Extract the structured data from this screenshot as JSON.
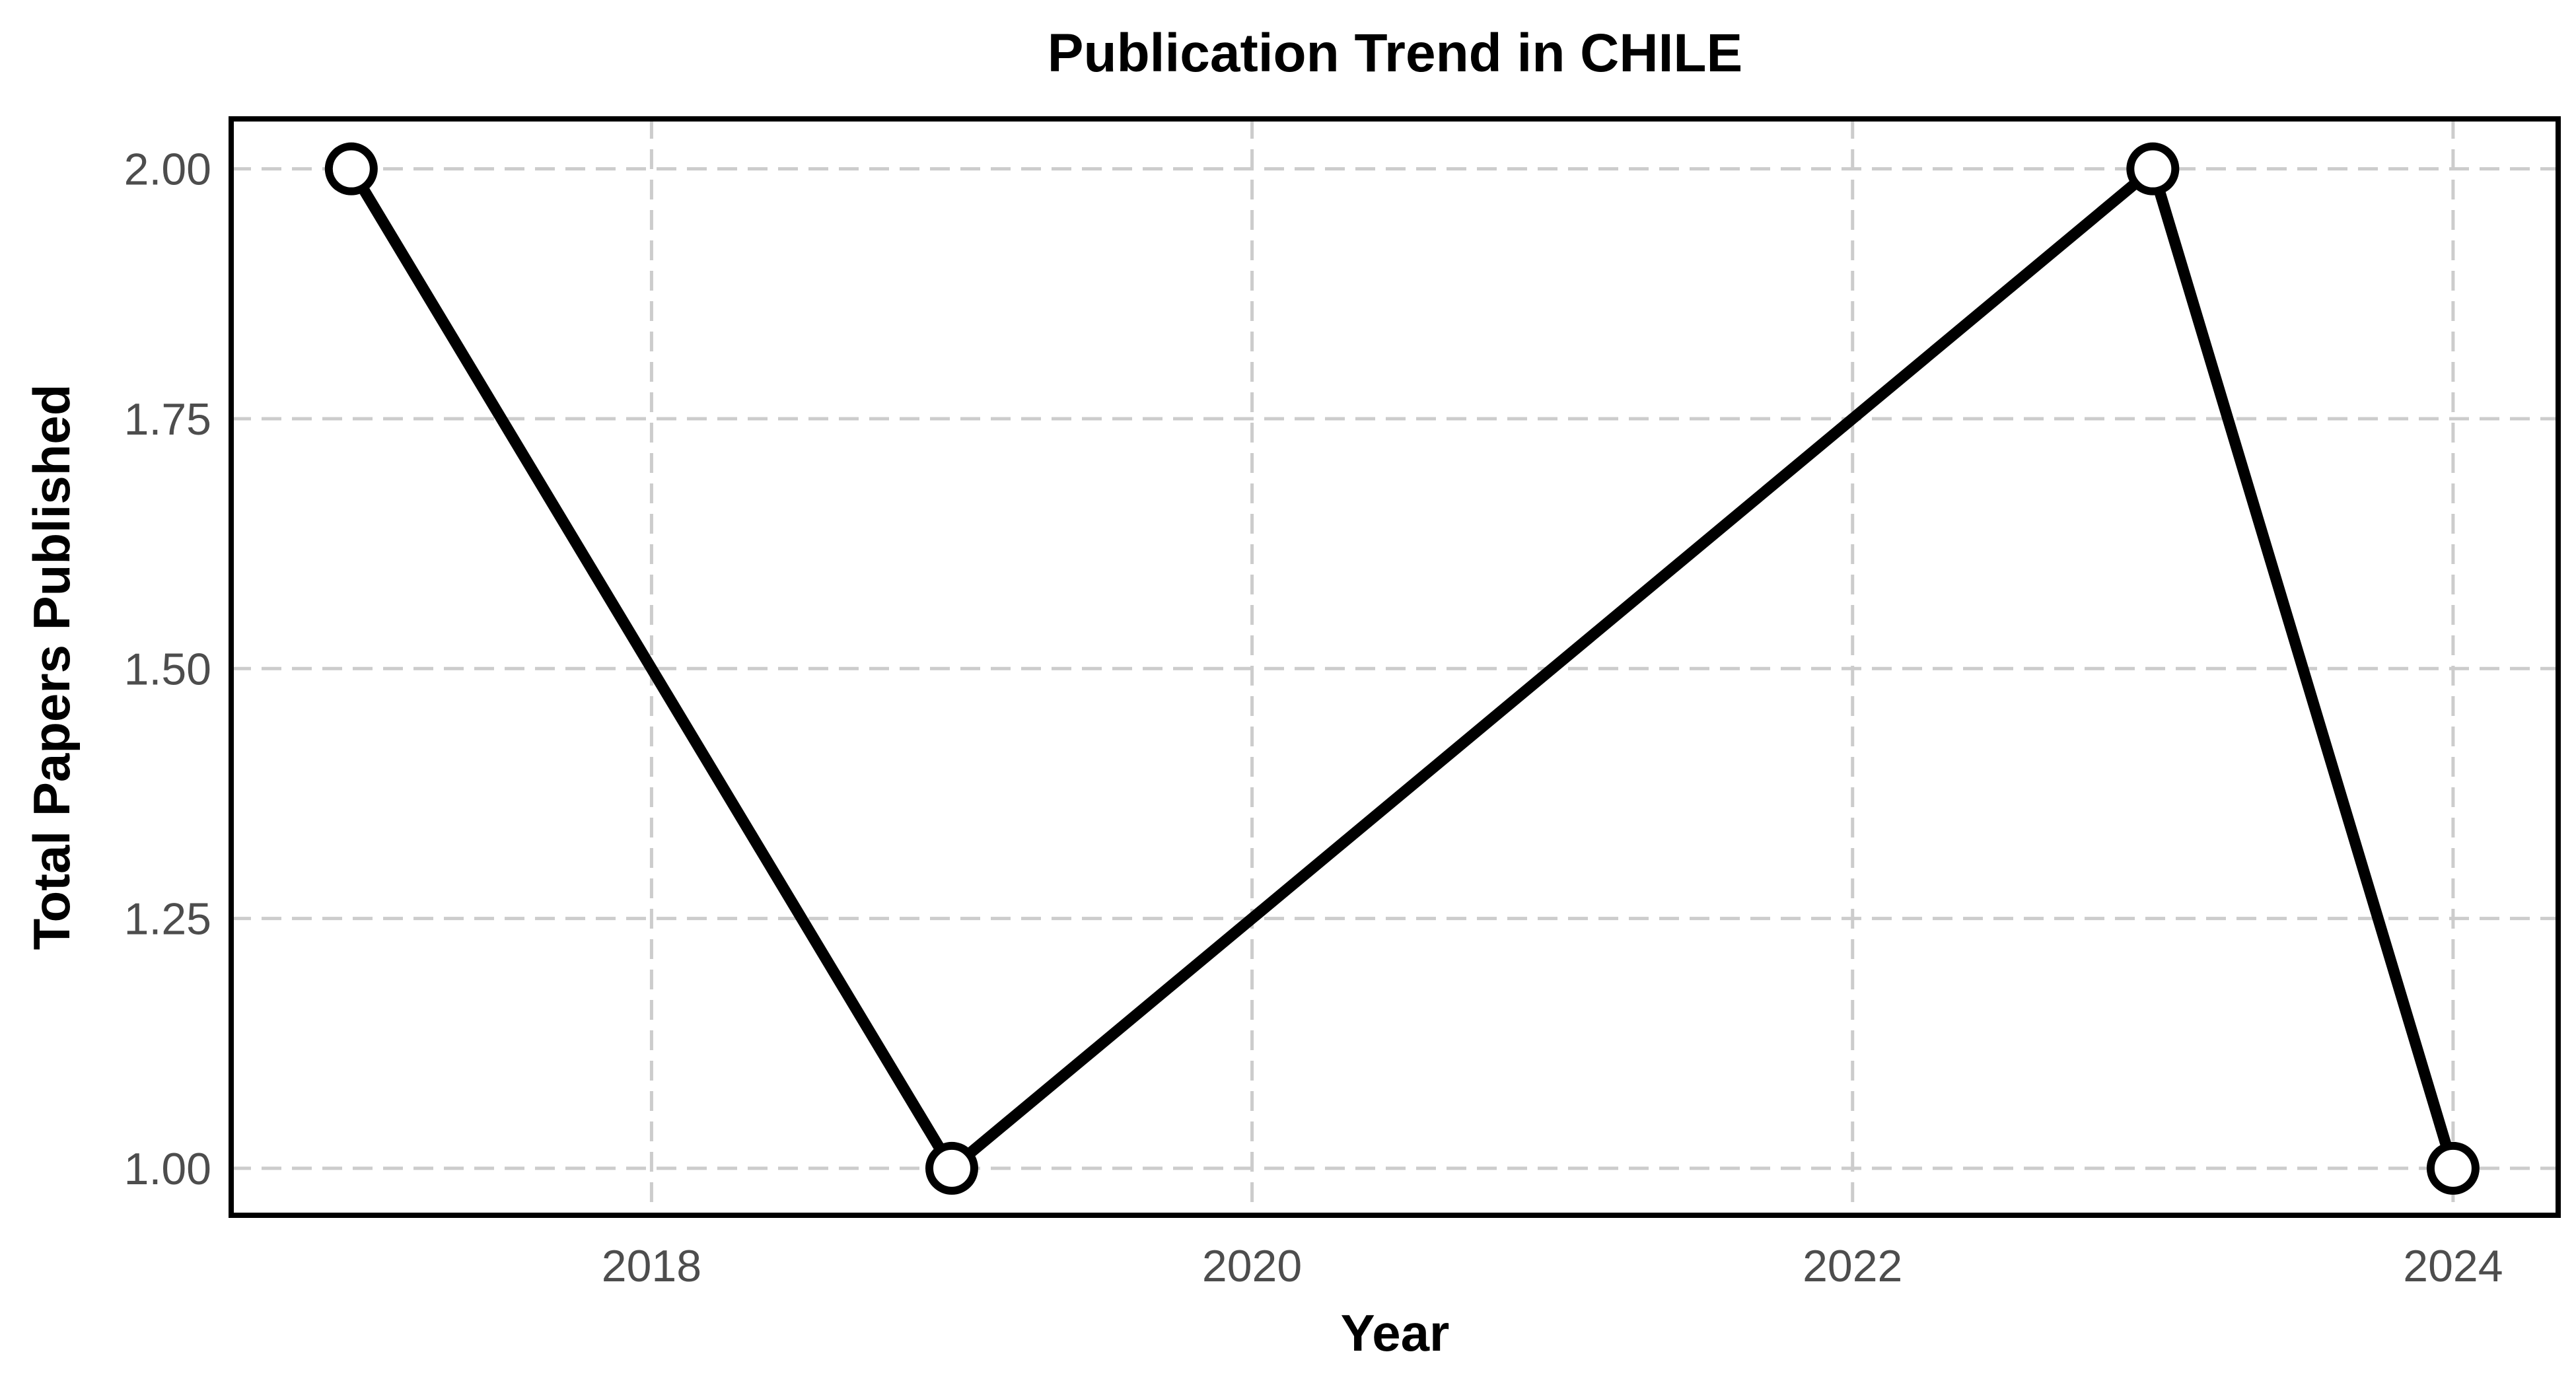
{
  "chart_data": {
    "type": "line",
    "title": "Publication Trend in CHILE",
    "xlabel": "Year",
    "ylabel": "Total Papers Published",
    "xlim": [
      2016.6,
      2024.35
    ],
    "ylim": [
      0.953,
      2.05
    ],
    "x_ticks": [
      2018,
      2020,
      2022,
      2024
    ],
    "x_tick_labels": [
      "2018",
      "2020",
      "2022",
      "2024"
    ],
    "y_ticks": [
      1.0,
      1.25,
      1.5,
      1.75,
      2.0
    ],
    "y_tick_labels": [
      "1.00",
      "1.25",
      "1.50",
      "1.75",
      "2.00"
    ],
    "grid": true,
    "legend": "none",
    "series": [
      {
        "x": [
          2017,
          2019,
          2023,
          2024
        ],
        "y": [
          2,
          1,
          2,
          1
        ],
        "color": "#000000"
      }
    ]
  }
}
